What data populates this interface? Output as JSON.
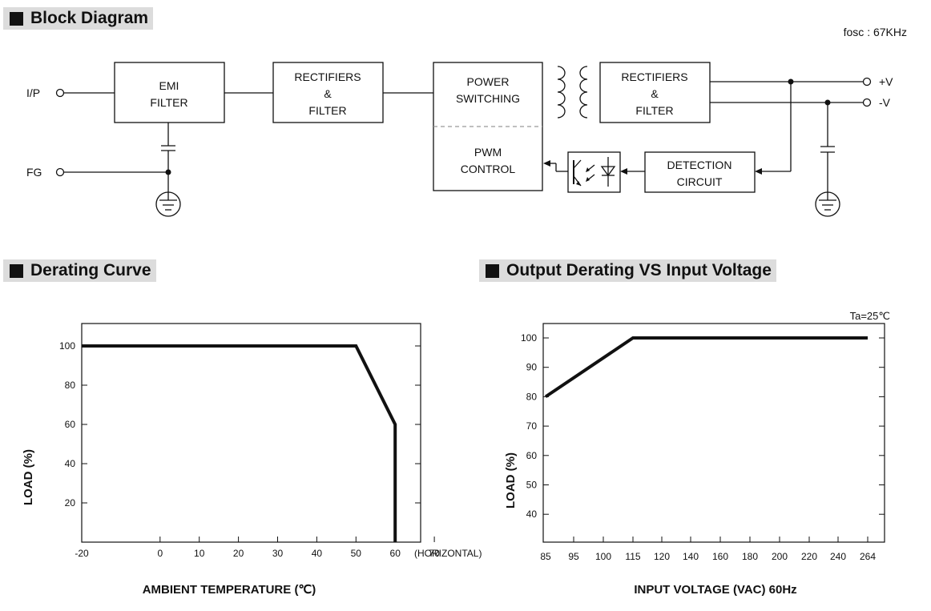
{
  "block_diagram": {
    "heading": "Block Diagram",
    "fosc": "fosc : 67KHz",
    "ip_label": "I/P",
    "fg_label": "FG",
    "emi_filter": [
      "EMI",
      "FILTER"
    ],
    "rectifiers_filter_1": [
      "RECTIFIERS",
      "&",
      "FILTER"
    ],
    "power_switching": [
      "POWER",
      "SWITCHING"
    ],
    "pwm_control": [
      "PWM",
      "CONTROL"
    ],
    "rectifiers_filter_2": [
      "RECTIFIERS",
      "&",
      "FILTER"
    ],
    "detection_circuit": [
      "DETECTION",
      "CIRCUIT"
    ],
    "out_pos": "+V",
    "out_neg": "-V"
  },
  "derating": {
    "heading": "Derating Curve",
    "chart_data": {
      "type": "line",
      "xlabel": "AMBIENT TEMPERATURE (℃)",
      "ylabel": "LOAD (%)",
      "x_suffix": "(HORIZONTAL)",
      "xlim": [
        -20,
        70
      ],
      "ylim": [
        0,
        110
      ],
      "xticks": [
        -20,
        0,
        10,
        20,
        30,
        40,
        50,
        60,
        70
      ],
      "yticks": [
        20,
        40,
        60,
        80,
        100
      ],
      "points": [
        [
          -20,
          100
        ],
        [
          50,
          100
        ],
        [
          60,
          60
        ],
        [
          60,
          0
        ]
      ]
    }
  },
  "input_derating": {
    "heading": "Output Derating VS Input Voltage",
    "note": "Ta=25℃",
    "chart_data": {
      "type": "line",
      "xlabel": "INPUT VOLTAGE (VAC) 60Hz",
      "ylabel": "LOAD (%)",
      "xticks": [
        "85",
        "95",
        "100",
        "115",
        "120",
        "140",
        "160",
        "180",
        "200",
        "220",
        "240",
        "264"
      ],
      "ylim": [
        30,
        105
      ],
      "yticks": [
        40,
        50,
        60,
        70,
        80,
        90,
        100
      ],
      "points": [
        [
          "85",
          80
        ],
        [
          "115",
          100
        ],
        [
          "264",
          100
        ]
      ]
    }
  }
}
